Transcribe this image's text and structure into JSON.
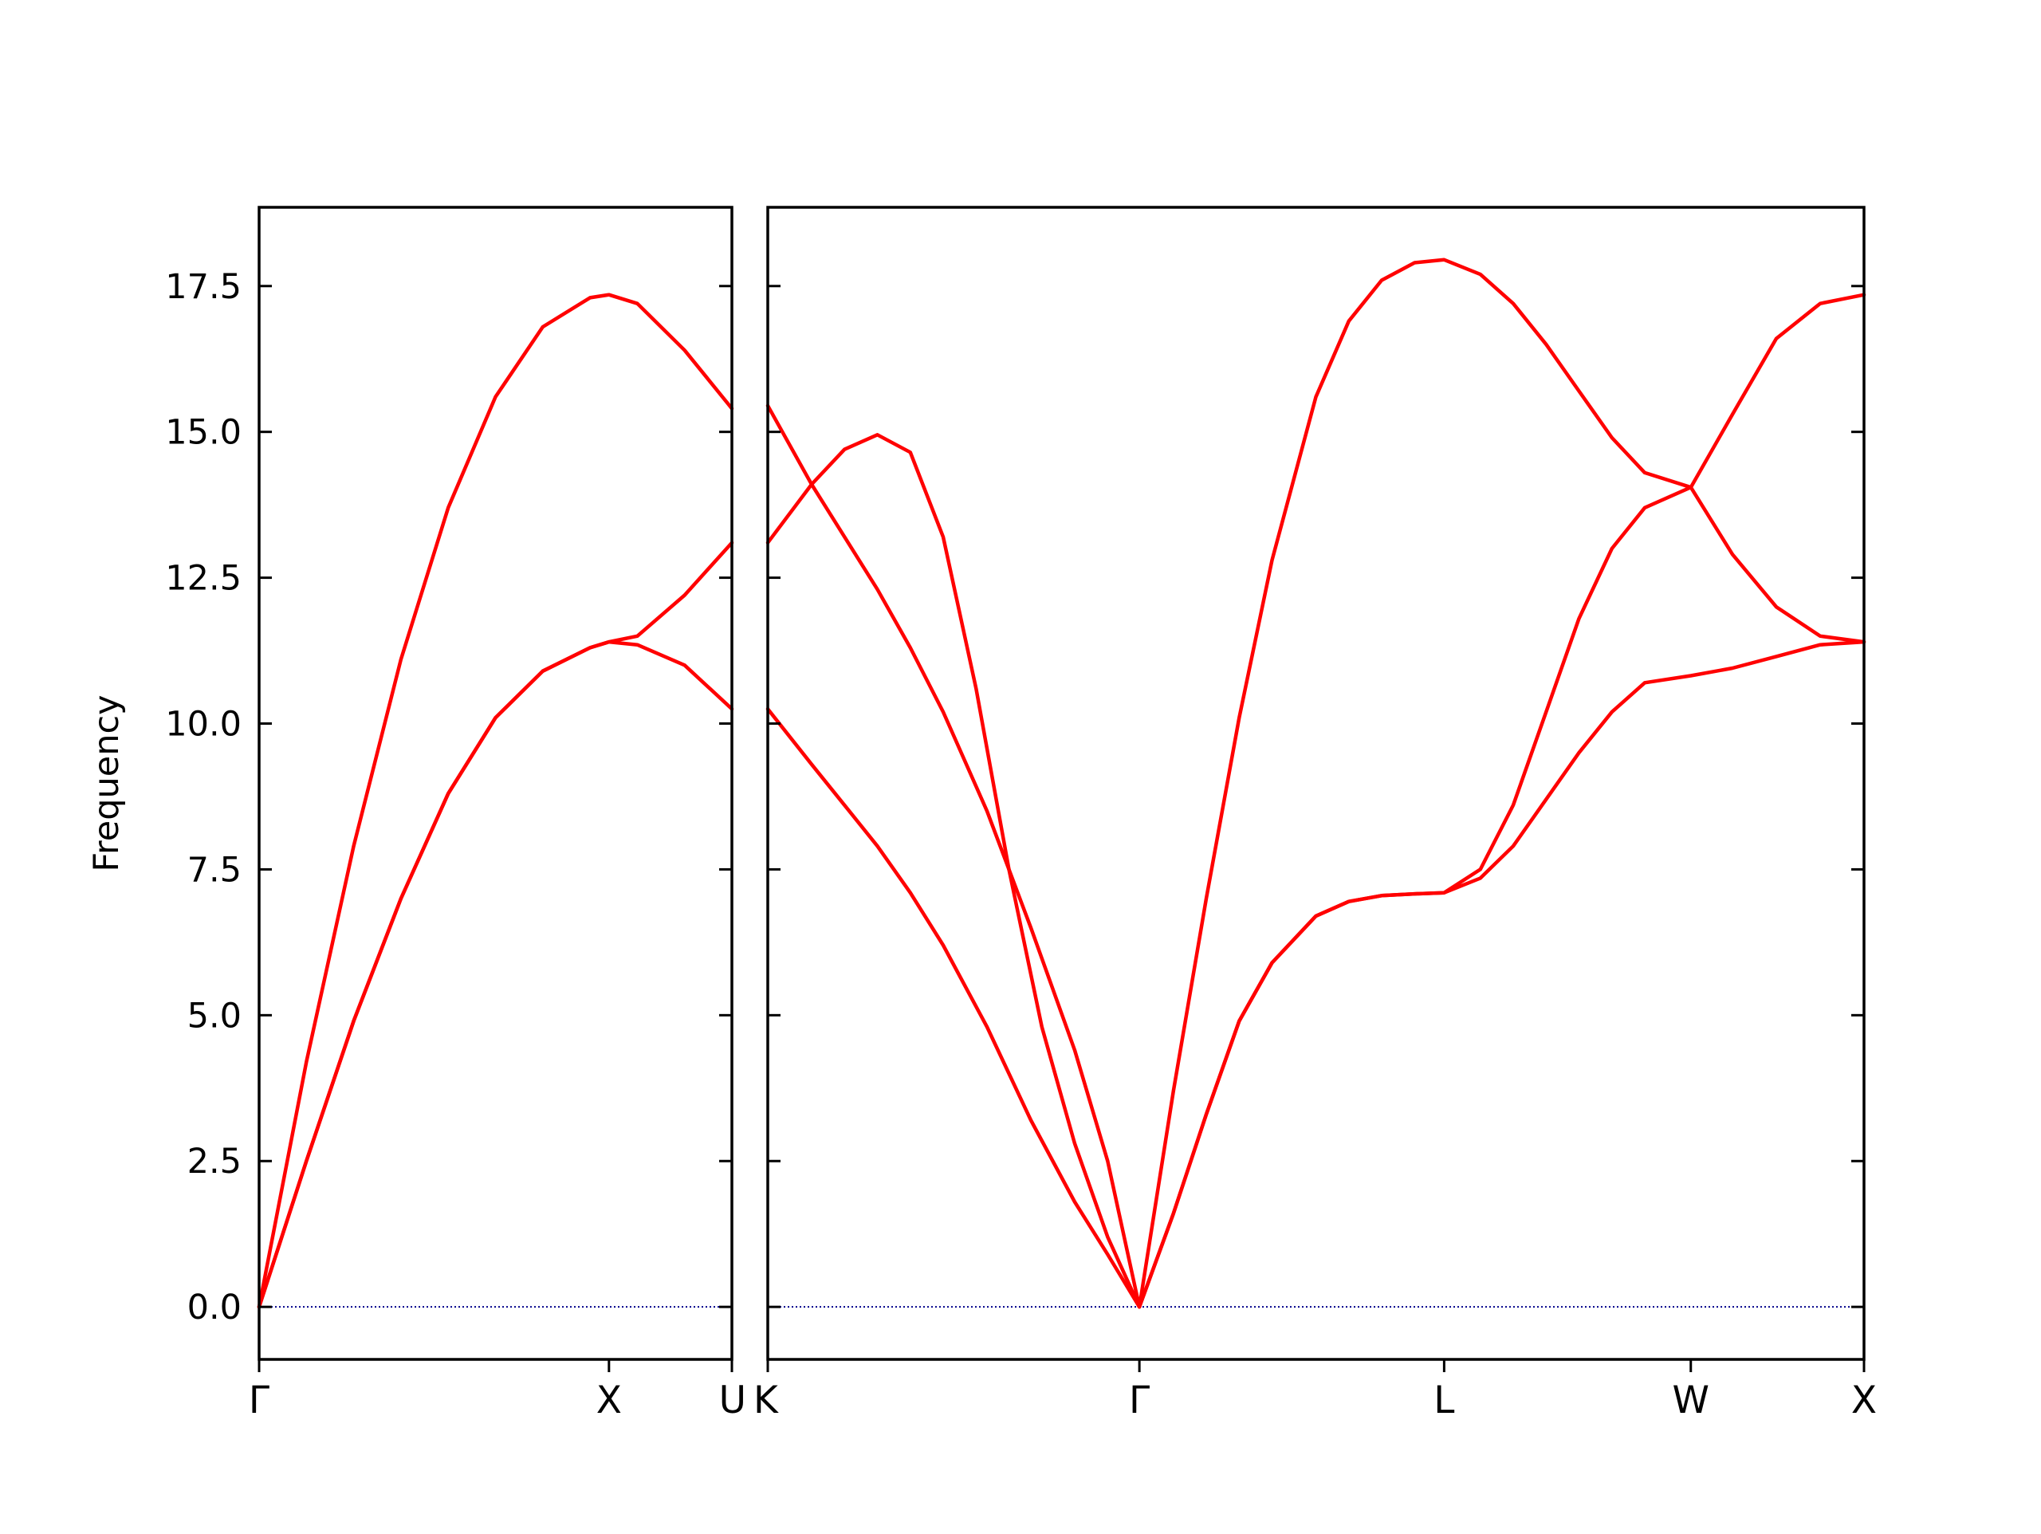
{
  "chart_data": {
    "type": "line",
    "ylabel": "Frequency",
    "ylim": [
      -0.9,
      18.85
    ],
    "yticks": [
      "0.0",
      "2.5",
      "5.0",
      "7.5",
      "10.0",
      "12.5",
      "15.0",
      "17.5"
    ],
    "colors": {
      "bands": "#ff0000",
      "zero_line": "#00008b",
      "axes": "#000000"
    },
    "zero_line": {
      "y": 0.0,
      "style": "dotted"
    },
    "panels": [
      {
        "path_labels": [
          "Γ",
          "X",
          "U"
        ],
        "path_label_x": [
          0.0,
          0.74,
          1.0
        ],
        "series": [
          {
            "x": [
              0.0,
              0.1,
              0.2,
              0.3,
              0.4,
              0.5,
              0.6,
              0.7,
              0.74,
              0.8,
              0.9,
              1.0
            ],
            "y": [
              0.0,
              4.2,
              7.9,
              11.1,
              13.7,
              15.6,
              16.8,
              17.3,
              17.35,
              17.2,
              16.4,
              15.4
            ]
          },
          {
            "x": [
              0.0,
              0.1,
              0.2,
              0.3,
              0.4,
              0.5,
              0.6,
              0.7,
              0.74,
              0.8,
              0.9,
              1.0
            ],
            "y": [
              0.0,
              2.5,
              4.9,
              7.0,
              8.8,
              10.1,
              10.9,
              11.3,
              11.4,
              11.35,
              11.0,
              10.25
            ]
          },
          {
            "x": [
              0.0,
              0.1,
              0.2,
              0.3,
              0.4,
              0.5,
              0.6,
              0.7,
              0.74,
              0.8,
              0.9,
              1.0
            ],
            "y": [
              0.0,
              2.5,
              4.9,
              7.0,
              8.8,
              10.1,
              10.9,
              11.3,
              11.4,
              11.5,
              12.2,
              13.1
            ]
          }
        ]
      },
      {
        "path_labels": [
          "K",
          "Γ",
          "L",
          "W",
          "X"
        ],
        "path_label_x": [
          0.0,
          0.339,
          0.617,
          0.842,
          1.0
        ],
        "series": [
          {
            "x": [
              0.0,
              0.04,
              0.07,
              0.1,
              0.13,
              0.16,
              0.2,
              0.24,
              0.28,
              0.31,
              0.339,
              0.37,
              0.4,
              0.43,
              0.46,
              0.5,
              0.53,
              0.56,
              0.59,
              0.617,
              0.65,
              0.68,
              0.71,
              0.74,
              0.77,
              0.8,
              0.842,
              0.88,
              0.92,
              0.96,
              1.0
            ],
            "y": [
              15.45,
              14.1,
              13.2,
              12.3,
              11.3,
              10.2,
              8.5,
              6.5,
              4.4,
              2.5,
              0.0,
              3.7,
              7.0,
              10.1,
              12.8,
              15.6,
              16.9,
              17.6,
              17.9,
              17.95,
              17.7,
              17.2,
              16.5,
              15.7,
              14.9,
              14.3,
              14.05,
              12.9,
              12.0,
              11.5,
              11.4
            ]
          },
          {
            "x": [
              0.0,
              0.04,
              0.07,
              0.1,
              0.13,
              0.16,
              0.19,
              0.22,
              0.25,
              0.28,
              0.31,
              0.339,
              0.37,
              0.4,
              0.43,
              0.46,
              0.5,
              0.53,
              0.56,
              0.59,
              0.617,
              0.65,
              0.68,
              0.71,
              0.74,
              0.77,
              0.8,
              0.842,
              0.88,
              0.92,
              0.96,
              1.0
            ],
            "y": [
              13.1,
              14.1,
              14.7,
              14.95,
              14.65,
              13.2,
              10.6,
              7.5,
              4.8,
              2.8,
              1.2,
              0.0,
              1.6,
              3.3,
              4.9,
              5.9,
              6.7,
              6.95,
              7.05,
              7.08,
              7.1,
              7.5,
              8.6,
              10.2,
              11.8,
              13.0,
              13.7,
              14.05,
              15.3,
              16.6,
              17.2,
              17.35
            ]
          },
          {
            "x": [
              0.0,
              0.04,
              0.07,
              0.1,
              0.13,
              0.16,
              0.2,
              0.24,
              0.28,
              0.31,
              0.339,
              0.37,
              0.4,
              0.43,
              0.46,
              0.5,
              0.53,
              0.56,
              0.59,
              0.617,
              0.65,
              0.68,
              0.71,
              0.74,
              0.77,
              0.8,
              0.842,
              0.88,
              0.92,
              0.96,
              1.0
            ],
            "y": [
              10.25,
              9.3,
              8.6,
              7.9,
              7.1,
              6.2,
              4.8,
              3.2,
              1.8,
              0.9,
              0.0,
              1.6,
              3.3,
              4.9,
              5.9,
              6.7,
              6.95,
              7.05,
              7.08,
              7.1,
              7.35,
              7.9,
              8.7,
              9.5,
              10.2,
              10.7,
              10.82,
              10.95,
              11.15,
              11.35,
              11.4
            ]
          }
        ]
      }
    ]
  }
}
